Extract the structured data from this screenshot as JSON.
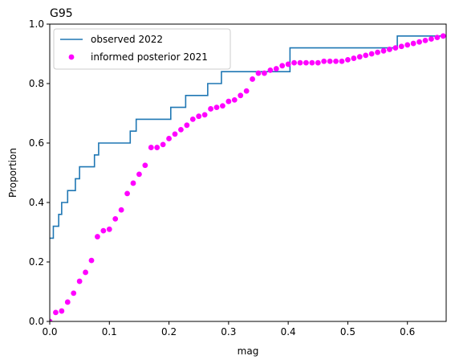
{
  "chart_data": {
    "type": "line",
    "title": "G95",
    "xlabel": "mag",
    "ylabel": "Proportion",
    "xlim": [
      0,
      0.665
    ],
    "ylim": [
      0,
      1.0
    ],
    "xticks": [
      0.0,
      0.1,
      0.2,
      0.3,
      0.4,
      0.5,
      0.6
    ],
    "xtick_labels": [
      "0.0",
      "0.1",
      "0.2",
      "0.3",
      "0.4",
      "0.5",
      "0.6"
    ],
    "yticks": [
      0.0,
      0.2,
      0.4,
      0.6,
      0.8,
      1.0
    ],
    "ytick_labels": [
      "0.0",
      "0.2",
      "0.4",
      "0.6",
      "0.8",
      "1.0"
    ],
    "legend": {
      "placement": "upper-left"
    },
    "grid": false,
    "series": [
      {
        "name": "observed 2022",
        "kind": "step",
        "color": "#1f77b4",
        "points": [
          [
            0.0,
            0.28
          ],
          [
            0.006,
            0.32
          ],
          [
            0.015,
            0.36
          ],
          [
            0.02,
            0.4
          ],
          [
            0.03,
            0.44
          ],
          [
            0.043,
            0.48
          ],
          [
            0.05,
            0.52
          ],
          [
            0.075,
            0.56
          ],
          [
            0.082,
            0.6
          ],
          [
            0.135,
            0.64
          ],
          [
            0.145,
            0.68
          ],
          [
            0.203,
            0.72
          ],
          [
            0.228,
            0.76
          ],
          [
            0.265,
            0.8
          ],
          [
            0.288,
            0.84
          ],
          [
            0.403,
            0.92
          ],
          [
            0.583,
            0.96
          ],
          [
            0.665,
            0.96
          ]
        ]
      },
      {
        "name": "informed posterior 2021",
        "kind": "scatter",
        "color": "#ff00ff",
        "points": [
          [
            0.0,
            0.0
          ],
          [
            0.01,
            0.03
          ],
          [
            0.02,
            0.035
          ],
          [
            0.03,
            0.065
          ],
          [
            0.04,
            0.095
          ],
          [
            0.05,
            0.135
          ],
          [
            0.06,
            0.165
          ],
          [
            0.07,
            0.205
          ],
          [
            0.08,
            0.285
          ],
          [
            0.09,
            0.305
          ],
          [
            0.1,
            0.31
          ],
          [
            0.11,
            0.345
          ],
          [
            0.12,
            0.375
          ],
          [
            0.13,
            0.43
          ],
          [
            0.14,
            0.465
          ],
          [
            0.15,
            0.495
          ],
          [
            0.16,
            0.525
          ],
          [
            0.17,
            0.585
          ],
          [
            0.18,
            0.585
          ],
          [
            0.19,
            0.595
          ],
          [
            0.2,
            0.615
          ],
          [
            0.21,
            0.63
          ],
          [
            0.22,
            0.645
          ],
          [
            0.23,
            0.66
          ],
          [
            0.24,
            0.68
          ],
          [
            0.25,
            0.69
          ],
          [
            0.26,
            0.695
          ],
          [
            0.27,
            0.715
          ],
          [
            0.28,
            0.72
          ],
          [
            0.29,
            0.725
          ],
          [
            0.3,
            0.74
          ],
          [
            0.31,
            0.745
          ],
          [
            0.32,
            0.76
          ],
          [
            0.33,
            0.775
          ],
          [
            0.34,
            0.815
          ],
          [
            0.35,
            0.835
          ],
          [
            0.36,
            0.835
          ],
          [
            0.37,
            0.845
          ],
          [
            0.38,
            0.85
          ],
          [
            0.39,
            0.86
          ],
          [
            0.4,
            0.865
          ],
          [
            0.41,
            0.87
          ],
          [
            0.42,
            0.87
          ],
          [
            0.43,
            0.87
          ],
          [
            0.44,
            0.87
          ],
          [
            0.45,
            0.87
          ],
          [
            0.46,
            0.875
          ],
          [
            0.47,
            0.875
          ],
          [
            0.48,
            0.875
          ],
          [
            0.49,
            0.875
          ],
          [
            0.5,
            0.88
          ],
          [
            0.51,
            0.885
          ],
          [
            0.52,
            0.89
          ],
          [
            0.53,
            0.895
          ],
          [
            0.54,
            0.9
          ],
          [
            0.55,
            0.905
          ],
          [
            0.56,
            0.91
          ],
          [
            0.57,
            0.915
          ],
          [
            0.58,
            0.92
          ],
          [
            0.59,
            0.925
          ],
          [
            0.6,
            0.93
          ],
          [
            0.61,
            0.935
          ],
          [
            0.62,
            0.94
          ],
          [
            0.63,
            0.945
          ],
          [
            0.64,
            0.95
          ],
          [
            0.65,
            0.955
          ],
          [
            0.66,
            0.96
          ]
        ]
      }
    ]
  }
}
